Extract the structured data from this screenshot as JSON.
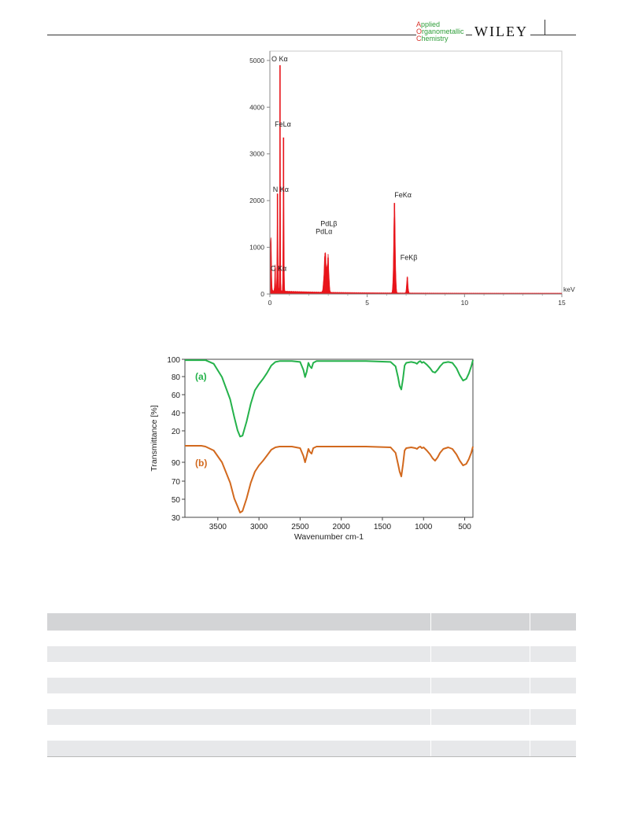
{
  "header": {
    "journal_lines": [
      "Applied",
      "Organometallic",
      "Chemistry"
    ],
    "publisher": "WILEY"
  },
  "chart_data": [
    {
      "type": "bar",
      "x_unit_label": "keV",
      "xlim": [
        0,
        15
      ],
      "ylim": [
        0,
        5200
      ],
      "x_ticks": [
        0,
        5,
        10,
        15
      ],
      "y_ticks": [
        0,
        1000,
        2000,
        3000,
        4000,
        5000
      ],
      "color": "#e8151b",
      "peaks": [
        {
          "x": 0.27,
          "y": 560,
          "label": "C Kα"
        },
        {
          "x": 0.39,
          "y": 2150,
          "label": "N Kα"
        },
        {
          "x": 0.52,
          "y": 4900,
          "label": "O Kα"
        },
        {
          "x": 0.7,
          "y": 3350,
          "label": "FeLα"
        },
        {
          "x": 2.84,
          "y": 880,
          "label": "PdLα"
        },
        {
          "x": 2.99,
          "y": 780,
          "label": "PdLβ"
        },
        {
          "x": 6.4,
          "y": 1950,
          "label": "FeKα"
        },
        {
          "x": 7.06,
          "y": 360,
          "label": "FeKβ"
        }
      ]
    },
    {
      "type": "line",
      "xlabel": "Wavenumber cm-1",
      "ylabel": "Transmittance [%]",
      "xlim": [
        3900,
        400
      ],
      "x_ticks": [
        3500,
        3000,
        2500,
        2000,
        1500,
        1000,
        500
      ],
      "y_tick_labels_upper": [
        "100",
        "80",
        "60",
        "40",
        "20"
      ],
      "y_tick_labels_lower": [
        "90",
        "70",
        "50",
        "30"
      ],
      "series": [
        {
          "name": "(a)",
          "color": "#25b24b",
          "x": [
            3900,
            3700,
            3650,
            3550,
            3450,
            3350,
            3300,
            3260,
            3230,
            3200,
            3150,
            3100,
            3050,
            3000,
            2950,
            2900,
            2850,
            2800,
            2750,
            2600,
            2500,
            2460,
            2440,
            2420,
            2400,
            2380,
            2360,
            2340,
            2320,
            2300,
            2100,
            1700,
            1400,
            1340,
            1310,
            1290,
            1270,
            1250,
            1230,
            1210,
            1150,
            1100,
            1080,
            1060,
            1040,
            1020,
            1000,
            960,
            920,
            890,
            860,
            830,
            800,
            760,
            700,
            650,
            600,
            560,
            520,
            480,
            450,
            420,
            400
          ],
          "y": [
            99,
            99,
            99,
            95,
            80,
            55,
            35,
            20,
            13,
            14,
            30,
            50,
            65,
            72,
            78,
            85,
            93,
            97,
            98,
            98,
            97,
            88,
            80,
            86,
            96,
            92,
            90,
            96,
            97,
            98,
            98,
            98,
            97,
            92,
            80,
            70,
            66,
            78,
            93,
            96,
            97,
            96,
            95,
            97,
            98,
            96,
            97,
            94,
            90,
            86,
            85,
            88,
            92,
            96,
            97,
            96,
            90,
            82,
            76,
            78,
            84,
            92,
            99
          ]
        },
        {
          "name": "(b)",
          "color": "#d2691e",
          "x": [
            3900,
            3700,
            3650,
            3550,
            3450,
            3350,
            3300,
            3260,
            3230,
            3200,
            3150,
            3100,
            3050,
            3000,
            2950,
            2900,
            2850,
            2800,
            2750,
            2600,
            2500,
            2460,
            2440,
            2420,
            2400,
            2380,
            2360,
            2340,
            2320,
            2300,
            2100,
            1700,
            1400,
            1340,
            1310,
            1290,
            1270,
            1250,
            1230,
            1210,
            1150,
            1100,
            1080,
            1060,
            1040,
            1020,
            1000,
            960,
            920,
            890,
            860,
            830,
            800,
            760,
            700,
            650,
            600,
            560,
            520,
            480,
            450,
            420,
            400
          ],
          "y": [
            99,
            99,
            98,
            93,
            78,
            52,
            32,
            22,
            14,
            16,
            32,
            52,
            66,
            74,
            80,
            87,
            94,
            97,
            98,
            98,
            96,
            86,
            78,
            86,
            95,
            91,
            89,
            96,
            97,
            98,
            98,
            98,
            97,
            90,
            76,
            66,
            60,
            75,
            93,
            96,
            97,
            96,
            95,
            97,
            98,
            96,
            97,
            93,
            88,
            83,
            80,
            84,
            90,
            95,
            97,
            95,
            88,
            80,
            74,
            76,
            82,
            90,
            98
          ]
        }
      ]
    }
  ],
  "table": {
    "rows": 9
  }
}
